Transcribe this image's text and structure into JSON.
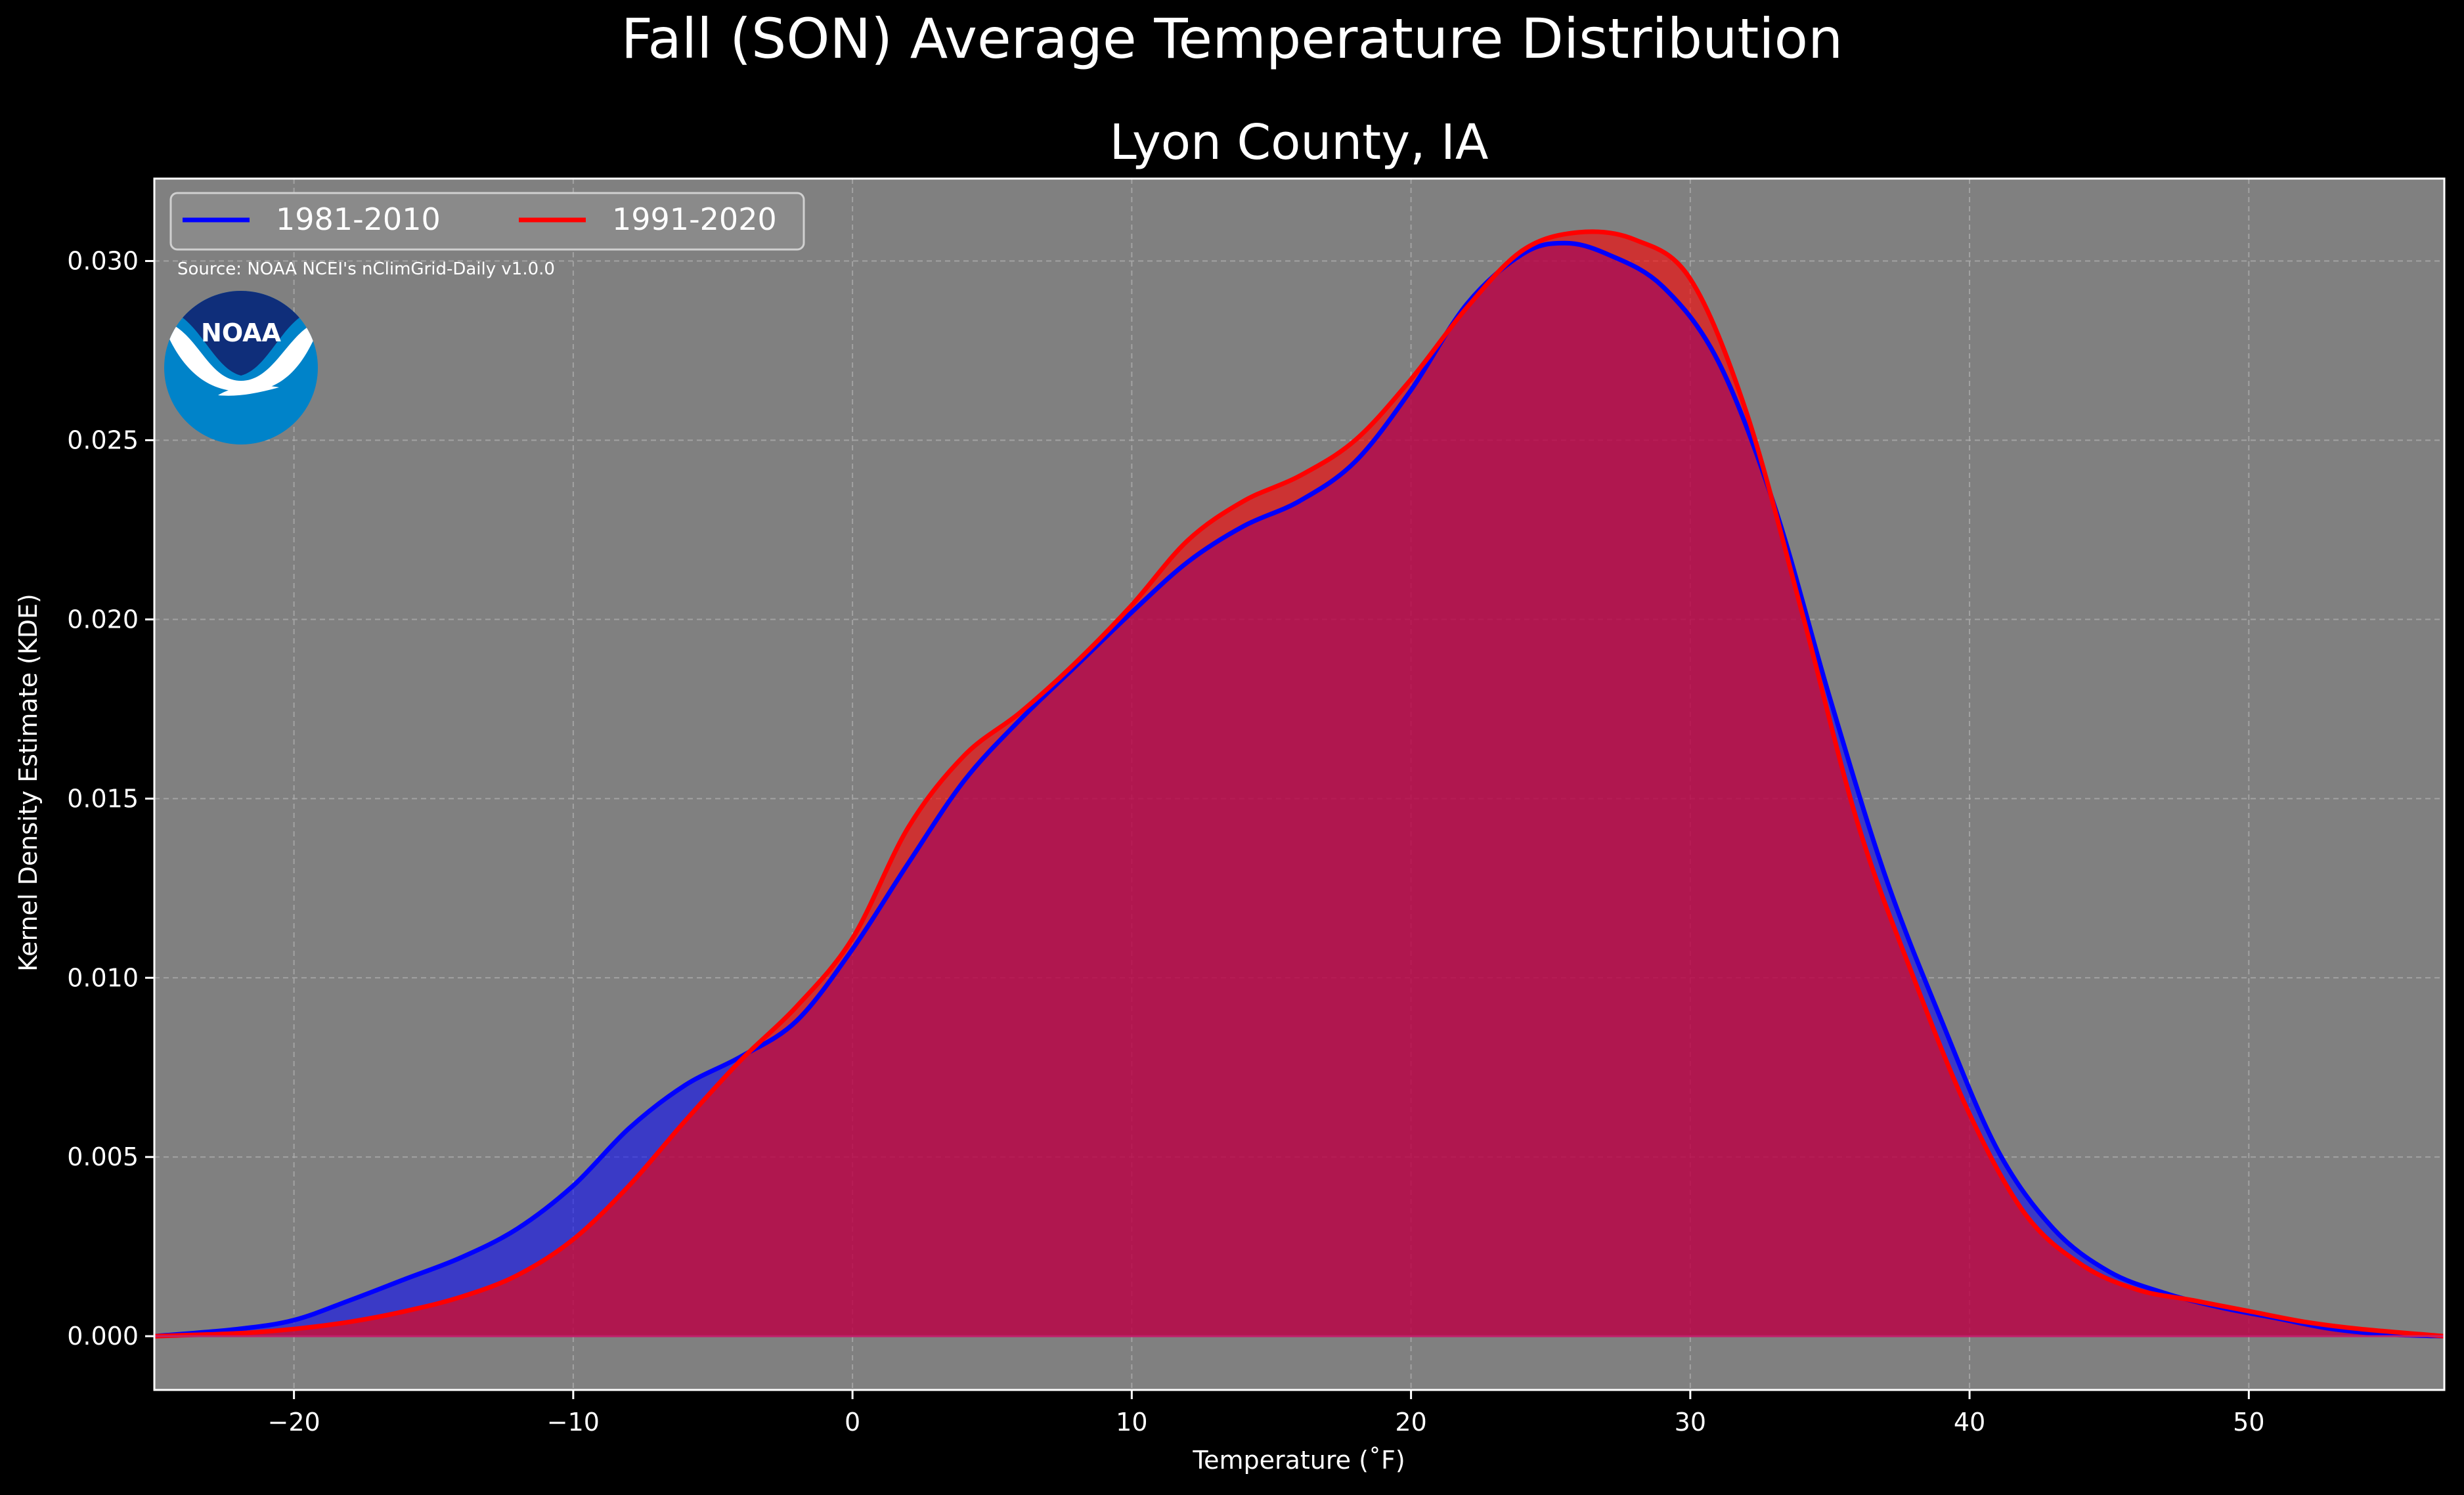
{
  "chart_data": {
    "type": "area",
    "suptitle": "Fall (SON) Average Temperature Distribution",
    "title": "Lyon County, IA",
    "xlabel": "Temperature (˚F)",
    "ylabel": "Kernel Density Estimate (KDE)",
    "source": "Source: NOAA NCEI's nClimGrid-Daily v1.0.0",
    "logo_text": "NOAA",
    "xlim": [
      -25,
      57
    ],
    "ylim": [
      -0.0015,
      0.0323
    ],
    "xticks": [
      -20,
      -10,
      0,
      10,
      20,
      30,
      40,
      50
    ],
    "xtick_labels": [
      "−20",
      "−10",
      "0",
      "10",
      "20",
      "30",
      "40",
      "50"
    ],
    "yticks": [
      0.0,
      0.005,
      0.01,
      0.015,
      0.02,
      0.025,
      0.03
    ],
    "ytick_labels": [
      "0.000",
      "0.005",
      "0.010",
      "0.015",
      "0.020",
      "0.025",
      "0.030"
    ],
    "grid": true,
    "legend_position": "top-left",
    "colors": {
      "background": "#000000",
      "plot_background": "#808080",
      "grid": "#b0b0b0"
    },
    "series": [
      {
        "name": "1981-2010",
        "color": "#0000ff",
        "x": [
          -25,
          -22,
          -20,
          -18,
          -16,
          -14,
          -12,
          -10,
          -8,
          -6,
          -4,
          -2,
          0,
          2,
          4,
          6,
          8,
          10,
          12,
          14,
          16,
          18,
          20,
          22,
          24,
          25.5,
          27,
          29,
          31,
          33,
          35,
          37,
          39,
          41,
          43,
          45,
          47,
          49,
          51,
          53,
          55,
          57
        ],
        "y": [
          0.0,
          0.0002,
          0.00045,
          0.001,
          0.0016,
          0.0022,
          0.003,
          0.0042,
          0.0058,
          0.007,
          0.0078,
          0.0088,
          0.0108,
          0.0132,
          0.0155,
          0.0172,
          0.0187,
          0.0202,
          0.0216,
          0.0226,
          0.0233,
          0.0244,
          0.0264,
          0.0288,
          0.0302,
          0.0305,
          0.0302,
          0.0293,
          0.0272,
          0.0232,
          0.0178,
          0.0128,
          0.0088,
          0.0052,
          0.003,
          0.0018,
          0.0012,
          0.0008,
          0.0005,
          0.0002,
          5e-05,
          0.0
        ]
      },
      {
        "name": "1991-2020",
        "color": "#ff0000",
        "x": [
          -25,
          -22,
          -20,
          -18,
          -16,
          -14,
          -12,
          -10,
          -8,
          -6,
          -4,
          -2,
          0,
          2,
          4,
          6,
          8,
          10,
          12,
          14,
          16,
          18,
          20,
          22,
          24,
          26,
          28,
          30,
          32,
          34,
          36,
          38,
          40,
          42,
          44,
          46,
          48,
          50,
          52,
          54,
          57
        ],
        "y": [
          0.0,
          8e-05,
          0.0002,
          0.0004,
          0.0007,
          0.0011,
          0.0017,
          0.0027,
          0.0042,
          0.006,
          0.0077,
          0.0092,
          0.0111,
          0.0142,
          0.0162,
          0.0174,
          0.0188,
          0.0204,
          0.0222,
          0.0233,
          0.024,
          0.025,
          0.0267,
          0.0287,
          0.0303,
          0.0308,
          0.0306,
          0.0295,
          0.0258,
          0.0202,
          0.0143,
          0.01,
          0.0062,
          0.0034,
          0.002,
          0.0013,
          0.001,
          0.0007,
          0.0004,
          0.0002,
          0.0
        ]
      }
    ]
  }
}
